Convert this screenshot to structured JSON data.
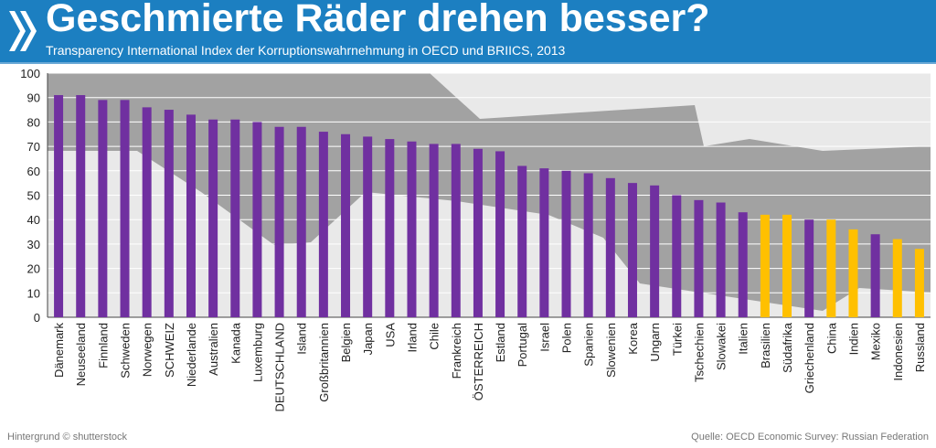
{
  "header": {
    "title": "Geschmierte Räder drehen besser?",
    "subtitle": "Transparency International Index der Korruptionswahrnehmung in OECD und BRIICS, 2013"
  },
  "footer": {
    "left": "Hintergrund © shutterstock",
    "right": "Quelle: OECD Economic Survey: Russian Federation"
  },
  "colors": {
    "header": "#1c7fc1",
    "oecd": "#7030a0",
    "briics": "#ffc000"
  },
  "chart_data": {
    "type": "bar",
    "title": "Geschmierte Räder drehen besser?",
    "xlabel": "",
    "ylabel": "",
    "ylim": [
      0,
      100
    ],
    "yticks": [
      0,
      10,
      20,
      30,
      40,
      50,
      60,
      70,
      80,
      90,
      100
    ],
    "grid": true,
    "categories": [
      "Dänemark",
      "Neuseeland",
      "Finnland",
      "Schweden",
      "Norwegen",
      "SCHWEIZ",
      "Niederlande",
      "Australien",
      "Kanada",
      "Luxemburg",
      "DEUTSCHLAND",
      "Island",
      "Großbritannien",
      "Belgien",
      "Japan",
      "USA",
      "Irland",
      "Chile",
      "Frankreich",
      "ÖSTERREICH",
      "Estland",
      "Portugal",
      "Israel",
      "Polen",
      "Spanien",
      "Slowenien",
      "Korea",
      "Ungarn",
      "Türkei",
      "Tschechien",
      "Slowakei",
      "Italien",
      "Brasilien",
      "Südafrika",
      "Griechenland",
      "China",
      "Indien",
      "Mexiko",
      "Indonesien",
      "Russland"
    ],
    "values": [
      91,
      91,
      89,
      89,
      86,
      85,
      83,
      81,
      81,
      80,
      78,
      78,
      76,
      75,
      74,
      73,
      72,
      71,
      71,
      69,
      68,
      62,
      61,
      60,
      59,
      57,
      55,
      54,
      50,
      48,
      47,
      43,
      42,
      42,
      40,
      40,
      36,
      34,
      32,
      28
    ],
    "group": [
      "OECD",
      "OECD",
      "OECD",
      "OECD",
      "OECD",
      "OECD",
      "OECD",
      "OECD",
      "OECD",
      "OECD",
      "OECD",
      "OECD",
      "OECD",
      "OECD",
      "OECD",
      "OECD",
      "OECD",
      "OECD",
      "OECD",
      "OECD",
      "OECD",
      "OECD",
      "OECD",
      "OECD",
      "OECD",
      "OECD",
      "OECD",
      "OECD",
      "OECD",
      "OECD",
      "OECD",
      "OECD",
      "BRIICS",
      "BRIICS",
      "OECD",
      "BRIICS",
      "BRIICS",
      "OECD",
      "BRIICS",
      "BRIICS"
    ]
  }
}
